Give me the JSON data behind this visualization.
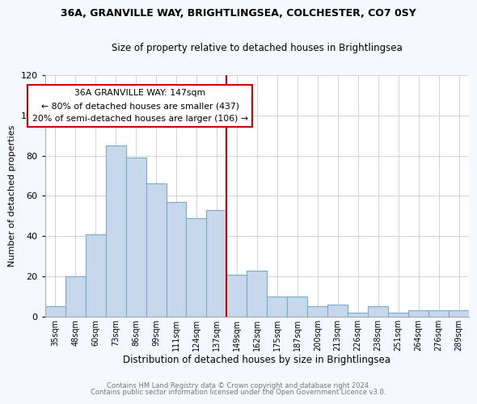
{
  "title_line1": "36A, GRANVILLE WAY, BRIGHTLINGSEA, COLCHESTER, CO7 0SY",
  "title_line2": "Size of property relative to detached houses in Brightlingsea",
  "xlabel": "Distribution of detached houses by size in Brightlingsea",
  "ylabel": "Number of detached properties",
  "footer_line1": "Contains HM Land Registry data © Crown copyright and database right 2024.",
  "footer_line2": "Contains public sector information licensed under the Open Government Licence v3.0.",
  "bar_labels": [
    "35sqm",
    "48sqm",
    "60sqm",
    "73sqm",
    "86sqm",
    "99sqm",
    "111sqm",
    "124sqm",
    "137sqm",
    "149sqm",
    "162sqm",
    "175sqm",
    "187sqm",
    "200sqm",
    "213sqm",
    "226sqm",
    "238sqm",
    "251sqm",
    "264sqm",
    "276sqm",
    "289sqm"
  ],
  "bar_values": [
    5,
    20,
    41,
    85,
    79,
    66,
    57,
    49,
    53,
    21,
    23,
    10,
    10,
    5,
    6,
    2,
    5,
    2,
    3,
    3,
    3
  ],
  "bar_color": "#c8d8ec",
  "bar_edge_color": "#7aaaca",
  "vline_color": "#cc0000",
  "vline_x_idx": 9,
  "annotation_title": "36A GRANVILLE WAY: 147sqm",
  "annotation_line2": "← 80% of detached houses are smaller (437)",
  "annotation_line3": "20% of semi-detached houses are larger (106) →",
  "annotation_box_color": "white",
  "annotation_box_edge": "#cc0000",
  "ylim": [
    0,
    120
  ],
  "yticks": [
    0,
    20,
    40,
    60,
    80,
    100,
    120
  ],
  "grid_color": "#cccccc",
  "background_color": "#ffffff",
  "fig_background": "#f5f8fc"
}
